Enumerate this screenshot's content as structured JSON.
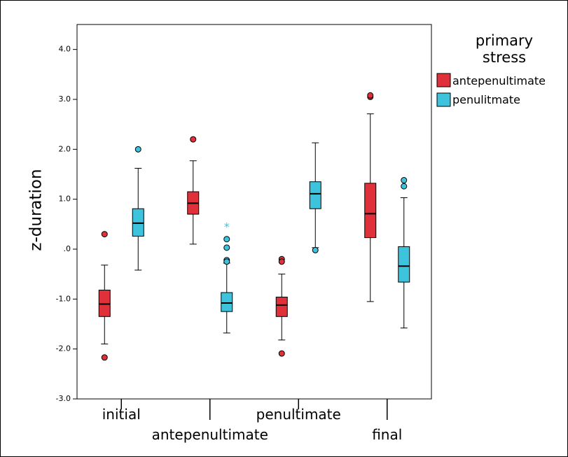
{
  "chart_data": {
    "type": "boxplot",
    "title": "",
    "xlabel": "",
    "ylabel": "z-duration",
    "ylim": [
      -3.0,
      4.5
    ],
    "y_ticks": [
      -3.0,
      -2.0,
      -1.0,
      0.0,
      1.0,
      2.0,
      3.0,
      4.0
    ],
    "y_tick_labels": [
      "-3.0",
      "-2.0",
      "-1.0",
      ".0",
      "1.0",
      "2.0",
      "3.0",
      "4.0"
    ],
    "categories": [
      "initial",
      "antepenultimate",
      "penultimate",
      "final"
    ],
    "legend": {
      "title": "primary stress",
      "title_lines": [
        "primary",
        "stress"
      ],
      "placement": "right"
    },
    "series": [
      {
        "name": "antepenultimate",
        "color": "#e0303a",
        "boxes": [
          {
            "whisker_low": -1.9,
            "q1": -1.35,
            "median": -1.1,
            "q3": -0.82,
            "whisker_high": -0.32,
            "outliers": [
              0.3,
              -2.17
            ],
            "extremes": []
          },
          {
            "whisker_low": 0.1,
            "q1": 0.7,
            "median": 0.92,
            "q3": 1.15,
            "whisker_high": 1.77,
            "outliers": [
              2.2
            ],
            "extremes": []
          },
          {
            "whisker_low": -1.82,
            "q1": -1.35,
            "median": -1.12,
            "q3": -0.96,
            "whisker_high": -0.5,
            "outliers": [
              -0.2,
              -0.25,
              -2.09
            ],
            "extremes": []
          },
          {
            "whisker_low": -1.05,
            "q1": 0.23,
            "median": 0.71,
            "q3": 1.32,
            "whisker_high": 2.71,
            "outliers": [
              3.05,
              3.08
            ],
            "extremes": []
          }
        ]
      },
      {
        "name": "penulitmate",
        "color": "#3ec3dd",
        "boxes": [
          {
            "whisker_low": -0.42,
            "q1": 0.26,
            "median": 0.52,
            "q3": 0.81,
            "whisker_high": 1.62,
            "outliers": [
              2.0
            ],
            "extremes": []
          },
          {
            "whisker_low": -1.68,
            "q1": -1.25,
            "median": -1.08,
            "q3": -0.87,
            "whisker_high": -0.28,
            "outliers": [
              0.2,
              0.03,
              -0.22,
              -0.25
            ],
            "extremes": [
              0.47
            ]
          },
          {
            "whisker_low": 0.03,
            "q1": 0.81,
            "median": 1.11,
            "q3": 1.35,
            "whisker_high": 2.13,
            "outliers": [
              -0.02
            ],
            "extremes": []
          },
          {
            "whisker_low": -1.58,
            "q1": -0.66,
            "median": -0.34,
            "q3": 0.05,
            "whisker_high": 1.03,
            "outliers": [
              1.26,
              1.38
            ],
            "extremes": []
          }
        ]
      }
    ],
    "grid": false
  }
}
